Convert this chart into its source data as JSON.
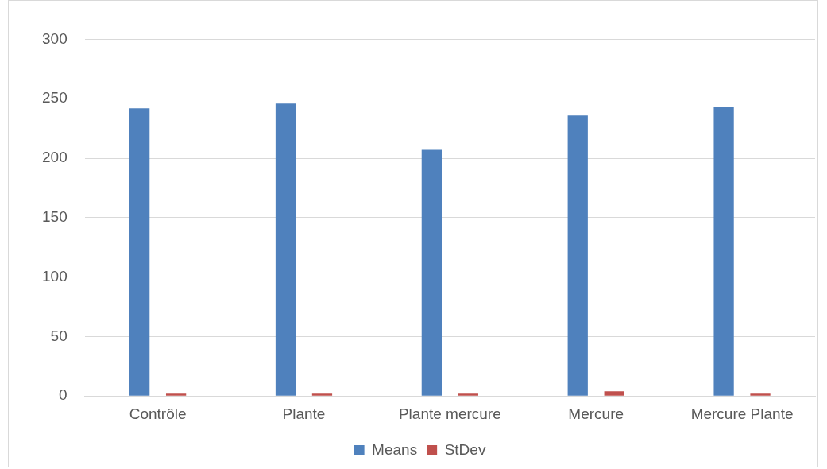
{
  "chart_data": {
    "type": "bar",
    "categories": [
      "Contrôle",
      "Plante",
      "Plante mercure",
      "Mercure",
      "Mercure Plante"
    ],
    "series": [
      {
        "name": "Means",
        "color": "#4f81bd",
        "values": [
          242,
          246,
          207,
          236,
          243
        ]
      },
      {
        "name": "StDev",
        "color": "#c0504d",
        "values": [
          2,
          2,
          2,
          4,
          2
        ]
      }
    ],
    "ylim": [
      0,
      300
    ],
    "yticks": [
      0,
      50,
      100,
      150,
      200,
      250,
      300
    ],
    "grid": "y",
    "legend": "bottom"
  }
}
